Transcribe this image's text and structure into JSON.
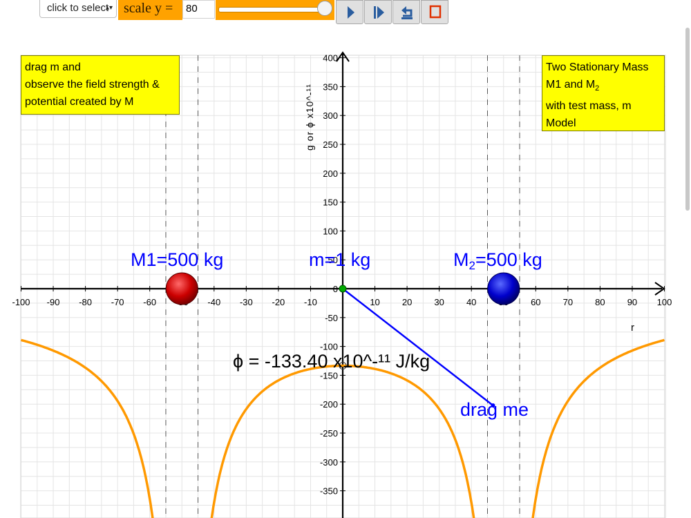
{
  "toolbar": {
    "select_label": "click to select",
    "select_caret": "▴▾",
    "scale_label": "scale y =",
    "scale_value": "80",
    "slider_level": 1.0,
    "buttons": [
      {
        "name": "step-forward-button",
        "icon": "play-triangle-icon"
      },
      {
        "name": "play-button",
        "icon": "step-forward-icon"
      },
      {
        "name": "reset-button",
        "icon": "undo-arrow-icon"
      },
      {
        "name": "stop-button",
        "icon": "stop-square-icon"
      }
    ]
  },
  "instruction_box": {
    "lines": [
      "drag m and",
      "observe the field strength &",
      "potential created by M"
    ]
  },
  "title_box": {
    "line1": "Two Stationary Mass",
    "line2_main": "M1 and M",
    "line2_sub": "2",
    "line3": "with test mass, m",
    "line4": "Model"
  },
  "graph": {
    "y_axis_label": "g or ϕ x10^-¹¹",
    "x_axis_label": "r",
    "mass1_label": "M1=500 kg",
    "mass_m_label": "m=1 kg",
    "mass2_label_main": "M",
    "mass2_label_sub": "2",
    "mass2_label_rest": "=500 kg",
    "phi_readout": "ϕ = -133.40 x10^-¹¹ J/kg",
    "drag_label": "drag me",
    "colors": {
      "curve": "#ff9900",
      "mass1": "#cc0000",
      "mass2": "#0000cc",
      "test_mass": "#00aa00",
      "line": "#0000ff",
      "label": "#0000ff"
    }
  },
  "chart_data": {
    "type": "line",
    "x_ticks": [
      "-100",
      "-90",
      "-80",
      "-70",
      "-60",
      "-50",
      "-40",
      "-30",
      "-20",
      "-10",
      "0",
      "10",
      "20",
      "30",
      "40",
      "50",
      "60",
      "70",
      "80",
      "90",
      "100"
    ],
    "y_ticks": [
      "400",
      "350",
      "300",
      "250",
      "200",
      "150",
      "100",
      "50",
      "0",
      "-50",
      "-100",
      "-150",
      "-200",
      "-250",
      "-300",
      "-350"
    ],
    "xlim": [
      -100,
      100
    ],
    "ylim": [
      -370,
      400
    ],
    "masses": [
      {
        "x": -50,
        "y": 0,
        "mass_kg": 500
      },
      {
        "x": 50,
        "y": 0,
        "mass_kg": 500
      }
    ],
    "test_mass": {
      "x": 0,
      "y": 0,
      "mass_kg": 1
    },
    "drag_handle": {
      "x": 48,
      "y": -195
    },
    "potential_readout": -133.4,
    "dashed_boundaries_x": [
      -55,
      -45,
      45,
      55
    ],
    "grid": true
  }
}
